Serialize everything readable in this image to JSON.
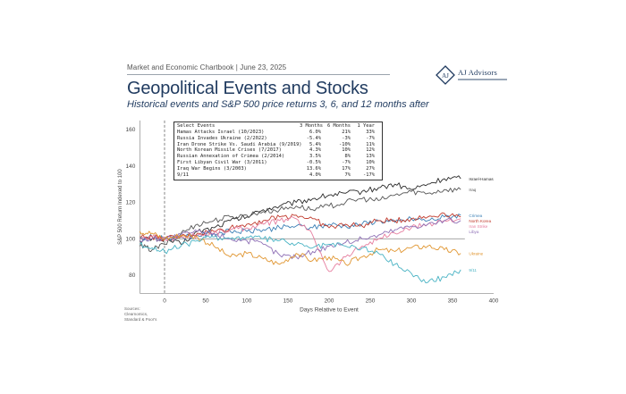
{
  "header": {
    "chartbook": "Market and Economic Chartbook | June 23, 2025",
    "title": "Geopolitical Events and Stocks",
    "subtitle": "Historical events and S&P 500 price returns 3, 6, and 12 months after"
  },
  "logo": {
    "name": "AJ Advisors",
    "icon": "aj-advisors-logo-icon"
  },
  "source": "Sources: Clearnomics, Standard & Poor's",
  "colors": {
    "title": "#1f3a5f",
    "baseline": "#888888"
  },
  "table": {
    "headers": [
      "Select Events",
      "3 Months",
      "6 Months",
      "1 Year"
    ],
    "rows": [
      [
        "Hamas Attacks Israel (10/2023)",
        "6.0%",
        "21%",
        "33%"
      ],
      [
        "Russia Invades Ukraine (2/2022)",
        "-5.4%",
        "-3%",
        "-7%"
      ],
      [
        "Iran Drone Strike Vs. Saudi Arabia (9/2019)",
        "5.4%",
        "-10%",
        "11%"
      ],
      [
        "North Korean Missile Crises (7/2017)",
        "4.3%",
        "10%",
        "12%"
      ],
      [
        "Russian Annexation of Crimea (2/2014)",
        "3.5%",
        "8%",
        "13%"
      ],
      [
        "First Libyan Civil War (3/2011)",
        "-0.5%",
        "-7%",
        "10%"
      ],
      [
        "Iraq War Begins (3/2003)",
        "13.6%",
        "17%",
        "27%"
      ],
      [
        "9/11",
        "4.0%",
        "7%",
        "-17%"
      ]
    ]
  },
  "chart_data": {
    "type": "line",
    "xlabel": "Days Relative to Event",
    "ylabel": "S&P 500 Return Indexed to 100",
    "xlim": [
      -30,
      400
    ],
    "ylim": [
      70,
      165
    ],
    "xticks": [
      0,
      50,
      100,
      150,
      200,
      250,
      300,
      350,
      400
    ],
    "yticks": [
      80,
      100,
      120,
      140,
      160
    ],
    "baseline": 100,
    "event_line_x": 0,
    "grid": false,
    "series": [
      {
        "name": "Israel-Hamas",
        "color": "#2b2b2b",
        "points": [
          [
            -30,
            99
          ],
          [
            -15,
            100
          ],
          [
            0,
            100
          ],
          [
            20,
            97
          ],
          [
            40,
            104
          ],
          [
            60,
            106
          ],
          [
            80,
            110
          ],
          [
            100,
            112
          ],
          [
            120,
            116
          ],
          [
            140,
            118
          ],
          [
            160,
            120
          ],
          [
            180,
            122
          ],
          [
            200,
            124
          ],
          [
            220,
            125
          ],
          [
            240,
            126
          ],
          [
            260,
            128
          ],
          [
            280,
            130
          ],
          [
            300,
            127
          ],
          [
            320,
            130
          ],
          [
            340,
            133
          ],
          [
            360,
            133
          ]
        ]
      },
      {
        "name": "Iraq",
        "color": "#555555",
        "points": [
          [
            -30,
            96
          ],
          [
            -15,
            94
          ],
          [
            0,
            97
          ],
          [
            20,
            103
          ],
          [
            40,
            108
          ],
          [
            60,
            110
          ],
          [
            80,
            112
          ],
          [
            100,
            113
          ],
          [
            120,
            115
          ],
          [
            140,
            116
          ],
          [
            160,
            118
          ],
          [
            180,
            116
          ],
          [
            200,
            118
          ],
          [
            220,
            120
          ],
          [
            240,
            122
          ],
          [
            260,
            121
          ],
          [
            280,
            124
          ],
          [
            300,
            126
          ],
          [
            320,
            125
          ],
          [
            340,
            127
          ],
          [
            360,
            127
          ]
        ]
      },
      {
        "name": "Crimea",
        "color": "#3a7fb5",
        "points": [
          [
            -30,
            100
          ],
          [
            -15,
            101
          ],
          [
            0,
            100
          ],
          [
            20,
            101
          ],
          [
            40,
            102
          ],
          [
            60,
            103
          ],
          [
            80,
            104
          ],
          [
            100,
            104
          ],
          [
            120,
            105
          ],
          [
            140,
            106
          ],
          [
            160,
            107
          ],
          [
            180,
            106
          ],
          [
            200,
            108
          ],
          [
            220,
            107
          ],
          [
            240,
            108
          ],
          [
            260,
            110
          ],
          [
            280,
            109
          ],
          [
            300,
            111
          ],
          [
            320,
            110
          ],
          [
            340,
            112
          ],
          [
            360,
            113
          ]
        ]
      },
      {
        "name": "North Korea",
        "color": "#c0392b",
        "points": [
          [
            -30,
            101
          ],
          [
            -15,
            101
          ],
          [
            0,
            100
          ],
          [
            20,
            101
          ],
          [
            40,
            103
          ],
          [
            60,
            104
          ],
          [
            80,
            106
          ],
          [
            100,
            108
          ],
          [
            120,
            110
          ],
          [
            140,
            112
          ],
          [
            160,
            113
          ],
          [
            180,
            111
          ],
          [
            200,
            106
          ],
          [
            220,
            108
          ],
          [
            240,
            107
          ],
          [
            260,
            110
          ],
          [
            280,
            110
          ],
          [
            300,
            111
          ],
          [
            320,
            112
          ],
          [
            340,
            114
          ],
          [
            360,
            112
          ]
        ]
      },
      {
        "name": "Iran Strike",
        "color": "#e67e9f",
        "points": [
          [
            -30,
            100
          ],
          [
            -15,
            101
          ],
          [
            0,
            100
          ],
          [
            20,
            101
          ],
          [
            40,
            102
          ],
          [
            60,
            103
          ],
          [
            80,
            105
          ],
          [
            100,
            106
          ],
          [
            120,
            108
          ],
          [
            140,
            110
          ],
          [
            160,
            111
          ],
          [
            180,
            102
          ],
          [
            200,
            82
          ],
          [
            220,
            90
          ],
          [
            240,
            96
          ],
          [
            260,
            100
          ],
          [
            280,
            103
          ],
          [
            300,
            106
          ],
          [
            320,
            108
          ],
          [
            340,
            110
          ],
          [
            360,
            111
          ]
        ]
      },
      {
        "name": "Libya",
        "color": "#8e6fb5",
        "points": [
          [
            -30,
            99
          ],
          [
            -15,
            100
          ],
          [
            0,
            100
          ],
          [
            20,
            102
          ],
          [
            40,
            104
          ],
          [
            60,
            103
          ],
          [
            80,
            100
          ],
          [
            100,
            99
          ],
          [
            120,
            97
          ],
          [
            140,
            91
          ],
          [
            160,
            90
          ],
          [
            180,
            93
          ],
          [
            200,
            96
          ],
          [
            220,
            98
          ],
          [
            240,
            100
          ],
          [
            260,
            102
          ],
          [
            280,
            105
          ],
          [
            300,
            107
          ],
          [
            320,
            108
          ],
          [
            340,
            110
          ],
          [
            360,
            110
          ]
        ]
      },
      {
        "name": "Ukraine",
        "color": "#e0952f",
        "points": [
          [
            -30,
            104
          ],
          [
            -15,
            103
          ],
          [
            0,
            100
          ],
          [
            20,
            102
          ],
          [
            40,
            101
          ],
          [
            60,
            96
          ],
          [
            80,
            90
          ],
          [
            100,
            92
          ],
          [
            120,
            89
          ],
          [
            140,
            86
          ],
          [
            160,
            92
          ],
          [
            180,
            88
          ],
          [
            200,
            90
          ],
          [
            220,
            86
          ],
          [
            240,
            90
          ],
          [
            260,
            94
          ],
          [
            280,
            93
          ],
          [
            300,
            95
          ],
          [
            320,
            96
          ],
          [
            340,
            94
          ],
          [
            360,
            92
          ]
        ]
      },
      {
        "name": "9/11",
        "color": "#49b3c4",
        "points": [
          [
            -30,
            97
          ],
          [
            -15,
            95
          ],
          [
            0,
            93
          ],
          [
            20,
            96
          ],
          [
            40,
            99
          ],
          [
            60,
            101
          ],
          [
            80,
            100
          ],
          [
            100,
            101
          ],
          [
            120,
            100
          ],
          [
            140,
            99
          ],
          [
            160,
            97
          ],
          [
            180,
            95
          ],
          [
            200,
            97
          ],
          [
            220,
            96
          ],
          [
            240,
            95
          ],
          [
            260,
            92
          ],
          [
            280,
            86
          ],
          [
            300,
            81
          ],
          [
            320,
            76
          ],
          [
            340,
            79
          ],
          [
            360,
            83
          ]
        ]
      }
    ],
    "end_labels": [
      "Israel-Hamas",
      "Iraq",
      "Crimea",
      "North Korea",
      "Iran Strike",
      "Libya",
      "Ukraine",
      "9/11"
    ]
  }
}
